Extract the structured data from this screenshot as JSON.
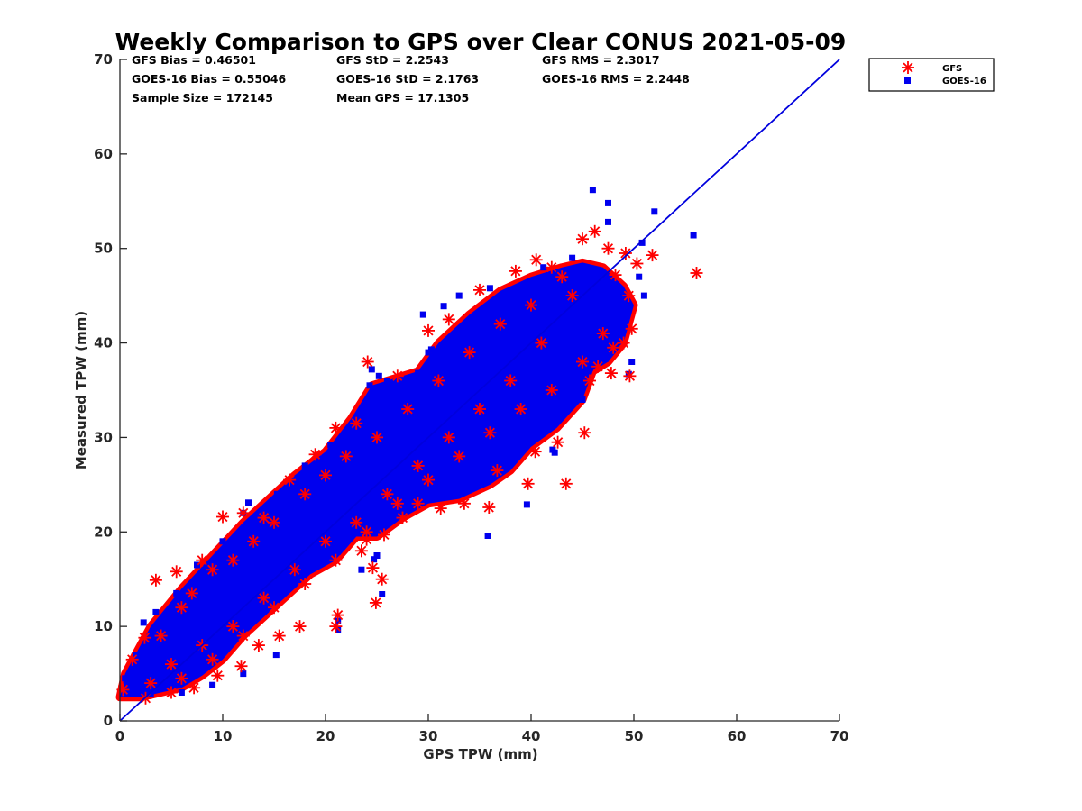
{
  "chart_data": {
    "type": "scatter",
    "title": "Weekly Comparison to GPS over Clear CONUS 2021-05-09",
    "xlabel": "GPS TPW (mm)",
    "ylabel": "Measured TPW (mm)",
    "xlim": [
      0,
      70
    ],
    "ylim": [
      0,
      70
    ],
    "xticks": [
      "0",
      "10",
      "20",
      "30",
      "40",
      "50",
      "60",
      "70"
    ],
    "yticks": [
      "0",
      "10",
      "20",
      "30",
      "40",
      "50",
      "60",
      "70"
    ],
    "grid": false,
    "legend_position": "outside top-right",
    "stats": {
      "row1": [
        "GFS Bias = 0.46501",
        "GFS StD = 2.2543",
        "GFS RMS = 2.3017"
      ],
      "row2": [
        "GOES-16 Bias = 0.55046",
        "GOES-16 StD = 2.1763",
        "GOES-16 RMS = 2.2448"
      ],
      "row3": [
        "Sample Size = 172145",
        "Mean GPS = 17.1305"
      ]
    },
    "reference_line": {
      "from": [
        0,
        0
      ],
      "to": [
        70,
        70
      ],
      "color": "#0000dd"
    },
    "series": [
      {
        "name": "GFS",
        "marker": "asterisk",
        "color": "#ff0000",
        "points": [
          [
            0.3,
            3.3
          ],
          [
            1.2,
            6.5
          ],
          [
            2.4,
            8.8
          ],
          [
            3.5,
            14.9
          ],
          [
            5.5,
            15.8
          ],
          [
            8,
            17
          ],
          [
            10,
            21.6
          ],
          [
            12,
            22
          ],
          [
            14,
            21.5
          ],
          [
            16.5,
            25.5
          ],
          [
            19,
            28.2
          ],
          [
            21,
            31
          ],
          [
            23,
            31.5
          ],
          [
            24.1,
            38
          ],
          [
            27,
            36.5
          ],
          [
            30,
            41.3
          ],
          [
            32,
            42.5
          ],
          [
            35,
            45.6
          ],
          [
            38.5,
            47.6
          ],
          [
            40.5,
            48.8
          ],
          [
            42,
            48
          ],
          [
            45,
            51
          ],
          [
            46.2,
            51.8
          ],
          [
            47.5,
            50
          ],
          [
            49.2,
            49.5
          ],
          [
            50.3,
            48.4
          ],
          [
            51.8,
            49.3
          ],
          [
            48.2,
            47.2
          ],
          [
            49.5,
            45
          ],
          [
            49.8,
            41.5
          ],
          [
            49,
            40
          ],
          [
            48,
            39.5
          ],
          [
            47.8,
            36.8
          ],
          [
            49.6,
            36.5
          ],
          [
            46.5,
            37.5
          ],
          [
            45.7,
            36
          ],
          [
            43.4,
            25.1
          ],
          [
            45.2,
            30.5
          ],
          [
            42.6,
            29.5
          ],
          [
            40.4,
            28.5
          ],
          [
            39.7,
            25.1
          ],
          [
            36.7,
            26.5
          ],
          [
            35.9,
            22.6
          ],
          [
            33.5,
            23
          ],
          [
            31.2,
            22.5
          ],
          [
            29,
            23
          ],
          [
            27.5,
            21.5
          ],
          [
            25.7,
            19.7
          ],
          [
            24,
            19.2
          ],
          [
            23.5,
            18
          ],
          [
            24.6,
            16.2
          ],
          [
            25.5,
            15
          ],
          [
            24.9,
            12.5
          ],
          [
            21.2,
            11.2
          ],
          [
            21,
            10
          ],
          [
            17.5,
            10
          ],
          [
            15.5,
            9
          ],
          [
            13.5,
            8
          ],
          [
            11.8,
            5.8
          ],
          [
            9.5,
            4.8
          ],
          [
            7.2,
            3.5
          ],
          [
            5,
            3
          ],
          [
            2.5,
            2.4
          ],
          [
            56.1,
            47.4
          ],
          [
            4,
            9
          ],
          [
            6,
            12
          ],
          [
            7,
            13.5
          ],
          [
            9,
            16
          ],
          [
            11,
            17
          ],
          [
            13,
            19
          ],
          [
            15,
            21
          ],
          [
            18,
            24
          ],
          [
            20,
            26
          ],
          [
            22,
            28
          ],
          [
            25,
            30
          ],
          [
            28,
            33
          ],
          [
            31,
            36
          ],
          [
            34,
            39
          ],
          [
            37,
            42
          ],
          [
            40,
            44
          ],
          [
            43,
            47
          ],
          [
            6,
            4.5
          ],
          [
            9,
            6.5
          ],
          [
            12,
            9
          ],
          [
            15,
            12
          ],
          [
            18,
            14.5
          ],
          [
            21,
            17
          ],
          [
            24,
            20
          ],
          [
            27,
            23
          ],
          [
            30,
            25.5
          ],
          [
            33,
            28
          ],
          [
            36,
            30.5
          ],
          [
            39,
            33
          ],
          [
            42,
            35
          ],
          [
            45,
            38
          ],
          [
            47,
            41
          ],
          [
            44,
            45
          ],
          [
            41,
            40
          ],
          [
            38,
            36
          ],
          [
            35,
            33
          ],
          [
            32,
            30
          ],
          [
            29,
            27
          ],
          [
            26,
            24
          ],
          [
            23,
            21
          ],
          [
            20,
            19
          ],
          [
            17,
            16
          ],
          [
            14,
            13
          ],
          [
            11,
            10
          ],
          [
            8,
            8
          ],
          [
            5,
            6
          ],
          [
            3,
            4
          ]
        ]
      },
      {
        "name": "GOES-16",
        "marker": "square",
        "color": "#0000ee",
        "points": [
          [
            46,
            56.2
          ],
          [
            47.5,
            54.8
          ],
          [
            52,
            53.9
          ],
          [
            47.5,
            52.8
          ],
          [
            55.8,
            51.4
          ],
          [
            50.8,
            50.6
          ],
          [
            44,
            49
          ],
          [
            41.2,
            48
          ],
          [
            36,
            45.8
          ],
          [
            33,
            45
          ],
          [
            31.5,
            43.9
          ],
          [
            29.5,
            43
          ],
          [
            24.5,
            37.2
          ],
          [
            26,
            36
          ],
          [
            29,
            36.8
          ],
          [
            30.3,
            39.3
          ],
          [
            47.2,
            38.3
          ],
          [
            49.8,
            38
          ],
          [
            49.5,
            36.7
          ],
          [
            50.5,
            47
          ],
          [
            51,
            45
          ],
          [
            48,
            44.5
          ],
          [
            46,
            43
          ],
          [
            44.5,
            41
          ],
          [
            43,
            38
          ],
          [
            45,
            34
          ],
          [
            43.5,
            33
          ],
          [
            42.3,
            28.4
          ],
          [
            42.1,
            28.7
          ],
          [
            39.6,
            22.9
          ],
          [
            35.8,
            19.6
          ],
          [
            34,
            27
          ],
          [
            31,
            25
          ],
          [
            29.5,
            24.5
          ],
          [
            27,
            22.5
          ],
          [
            24.7,
            17.1
          ],
          [
            25,
            17.5
          ],
          [
            23.5,
            16
          ],
          [
            25.5,
            13.4
          ],
          [
            21.2,
            10.6
          ],
          [
            21.2,
            9.6
          ],
          [
            15.2,
            7
          ],
          [
            12,
            5
          ],
          [
            9,
            3.8
          ],
          [
            6,
            3
          ],
          [
            3,
            2.8
          ],
          [
            1,
            3
          ],
          [
            0.5,
            4.5
          ],
          [
            1.5,
            7
          ],
          [
            2.6,
            8.7
          ],
          [
            2.3,
            10.4
          ],
          [
            3.5,
            11.5
          ],
          [
            5.5,
            13.5
          ],
          [
            7.5,
            16.5
          ],
          [
            10,
            19
          ],
          [
            12,
            22
          ],
          [
            12.5,
            23.1
          ],
          [
            15.3,
            24
          ],
          [
            18,
            27
          ],
          [
            20.5,
            29.2
          ],
          [
            23,
            32
          ],
          [
            24.3,
            35.5
          ],
          [
            25.2,
            36.5
          ],
          [
            27.5,
            35
          ],
          [
            30,
            39
          ],
          [
            33,
            41
          ],
          [
            36,
            43.5
          ],
          [
            39,
            45
          ],
          [
            41.5,
            46
          ],
          [
            43.5,
            47.5
          ],
          [
            26,
            33
          ],
          [
            10.5,
            14
          ],
          [
            8.8,
            9.5
          ],
          [
            14,
            17.5
          ]
        ]
      }
    ],
    "density_band": {
      "description": "dense overlapping cloud of both series along the 1:1 line",
      "upper_edge": [
        [
          0,
          2.5
        ],
        [
          0.5,
          5
        ],
        [
          3,
          10
        ],
        [
          6,
          14
        ],
        [
          9,
          17.5
        ],
        [
          12,
          21
        ],
        [
          15,
          24
        ],
        [
          17,
          26
        ],
        [
          20,
          28.5
        ],
        [
          22.5,
          32
        ],
        [
          24.5,
          35.5
        ],
        [
          26,
          36
        ],
        [
          29,
          37
        ],
        [
          31,
          40
        ],
        [
          34,
          43
        ],
        [
          37,
          45.5
        ],
        [
          40,
          47
        ],
        [
          43,
          48
        ],
        [
          45,
          48.5
        ],
        [
          47,
          48
        ],
        [
          49,
          46
        ],
        [
          50,
          44
        ],
        [
          49,
          40
        ],
        [
          47.5,
          38
        ],
        [
          46,
          37
        ]
      ],
      "lower_edge": [
        [
          46,
          37
        ],
        [
          45,
          34
        ],
        [
          42.5,
          31
        ],
        [
          40,
          29
        ],
        [
          38,
          26.5
        ],
        [
          36,
          25
        ],
        [
          33,
          23.5
        ],
        [
          30,
          23
        ],
        [
          27.5,
          21.5
        ],
        [
          25,
          19.5
        ],
        [
          23,
          19.5
        ],
        [
          21,
          17
        ],
        [
          18.5,
          15.5
        ],
        [
          16,
          13
        ],
        [
          14,
          11
        ],
        [
          12,
          9
        ],
        [
          10,
          6.5
        ],
        [
          8,
          4.8
        ],
        [
          6,
          3.5
        ],
        [
          4,
          3
        ],
        [
          2,
          2.5
        ],
        [
          0.5,
          2.5
        ]
      ]
    }
  }
}
